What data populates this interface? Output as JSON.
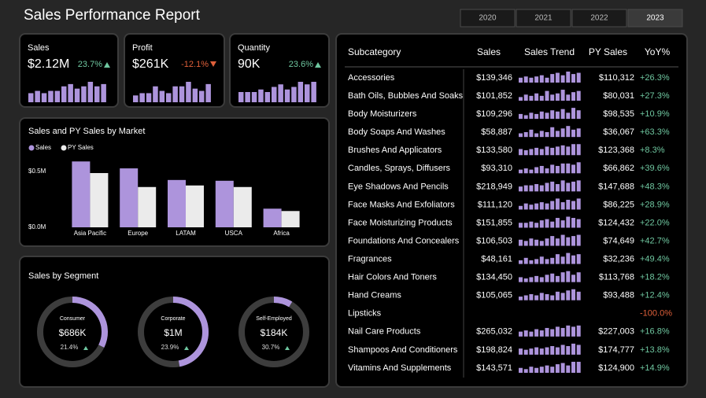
{
  "header": {
    "title": "Sales Performance Report",
    "years": [
      "2020",
      "2021",
      "2022",
      "2023"
    ],
    "selected_year": "2023"
  },
  "kpis": [
    {
      "label": "Sales",
      "value": "$2.12M",
      "change": "23.7%",
      "direction": "up",
      "trend": [
        4,
        5,
        4,
        5,
        5,
        7,
        8,
        6,
        7,
        9,
        7,
        8
      ]
    },
    {
      "label": "Profit",
      "value": "$261K",
      "change": "-12.1%",
      "direction": "down",
      "trend": [
        3,
        4,
        4,
        7,
        5,
        4,
        7,
        7,
        9,
        6,
        5,
        8
      ]
    },
    {
      "label": "Quantity",
      "value": "90K",
      "change": "23.6%",
      "direction": "up",
      "trend": [
        4,
        4,
        4,
        5,
        4,
        6,
        7,
        5,
        6,
        8,
        7,
        8
      ]
    }
  ],
  "chart_data": [
    {
      "type": "bar",
      "title": "Sales and PY Sales by Market",
      "categories": [
        "Asia Pacific",
        "Europe",
        "LATAM",
        "USCA",
        "Africa"
      ],
      "series": [
        {
          "name": "Sales",
          "color": "#ad94dc",
          "values": [
            590000,
            528000,
            424000,
            417000,
            167000
          ]
        },
        {
          "name": "PY Sales",
          "color": "#ebebeb",
          "values": [
            486000,
            361000,
            375000,
            361000,
            146000
          ]
        }
      ],
      "ylim": [
        0,
        620000
      ],
      "yticks": [
        {
          "value": 0,
          "label": "$0.0M"
        },
        {
          "value": 500000,
          "label": "$0.5M"
        }
      ]
    },
    {
      "type": "donut",
      "title": "Sales by Segment",
      "categories": [
        "Consumer",
        "Corporate",
        "Self-Employed"
      ],
      "values": [
        686000,
        1000000,
        184000
      ],
      "value_labels": [
        "$686K",
        "$1M",
        "$184K"
      ],
      "changes": [
        "21.4%",
        "23.9%",
        "30.7%"
      ],
      "color": "#ad94dc"
    }
  ],
  "table": {
    "columns": [
      "Subcategory",
      "Sales",
      "Sales Trend",
      "PY Sales",
      "YoY%"
    ],
    "rows": [
      {
        "name": "Accessories",
        "sales": "$139,346",
        "py_sales": "$110,312",
        "yoy": "+26.3%",
        "trend": [
          4,
          5,
          4,
          5,
          6,
          4,
          7,
          8,
          6,
          9,
          7,
          8
        ]
      },
      {
        "name": "Bath Oils, Bubbles And Soaks",
        "sales": "$101,852",
        "py_sales": "$80,031",
        "yoy": "+27.3%",
        "trend": [
          3,
          5,
          4,
          6,
          4,
          8,
          5,
          6,
          9,
          5,
          7,
          8
        ]
      },
      {
        "name": "Body Moisturizers",
        "sales": "$109,296",
        "py_sales": "$98,535",
        "yoy": "+10.9%",
        "trend": [
          4,
          3,
          5,
          4,
          6,
          5,
          7,
          6,
          8,
          5,
          9,
          7
        ]
      },
      {
        "name": "Body Soaps And Washes",
        "sales": "$58,887",
        "py_sales": "$36,067",
        "yoy": "+63.3%",
        "trend": [
          3,
          4,
          6,
          3,
          5,
          4,
          8,
          5,
          7,
          9,
          6,
          7
        ]
      },
      {
        "name": "Brushes And Applicators",
        "sales": "$133,580",
        "py_sales": "$123,368",
        "yoy": "+8.3%",
        "trend": [
          5,
          4,
          5,
          6,
          5,
          7,
          6,
          7,
          8,
          7,
          9,
          9
        ]
      },
      {
        "name": "Candles, Sprays, Diffusers",
        "sales": "$93,310",
        "py_sales": "$66,862",
        "yoy": "+39.6%",
        "trend": [
          3,
          4,
          3,
          5,
          6,
          4,
          7,
          6,
          8,
          8,
          7,
          9
        ]
      },
      {
        "name": "Eye Shadows And Pencils",
        "sales": "$218,949",
        "py_sales": "$147,688",
        "yoy": "+48.3%",
        "trend": [
          4,
          5,
          5,
          6,
          5,
          7,
          8,
          6,
          9,
          7,
          8,
          9
        ]
      },
      {
        "name": "Face Masks And Exfoliators",
        "sales": "$111,120",
        "py_sales": "$86,225",
        "yoy": "+28.9%",
        "trend": [
          3,
          5,
          4,
          5,
          6,
          5,
          7,
          9,
          6,
          8,
          7,
          9
        ]
      },
      {
        "name": "Face Moisturizing Products",
        "sales": "$151,855",
        "py_sales": "$124,432",
        "yoy": "+22.0%",
        "trend": [
          4,
          4,
          5,
          4,
          6,
          7,
          5,
          8,
          6,
          9,
          8,
          7
        ]
      },
      {
        "name": "Foundations And Concealers",
        "sales": "$106,503",
        "py_sales": "$74,649",
        "yoy": "+42.7%",
        "trend": [
          5,
          4,
          6,
          5,
          4,
          6,
          8,
          6,
          9,
          7,
          8,
          9
        ]
      },
      {
        "name": "Fragrances",
        "sales": "$48,161",
        "py_sales": "$32,236",
        "yoy": "+49.4%",
        "trend": [
          3,
          5,
          3,
          4,
          6,
          4,
          5,
          8,
          6,
          9,
          7,
          8
        ]
      },
      {
        "name": "Hair Colors And Toners",
        "sales": "$134,450",
        "py_sales": "$113,768",
        "yoy": "+18.2%",
        "trend": [
          4,
          3,
          4,
          5,
          4,
          6,
          7,
          5,
          8,
          9,
          6,
          8
        ]
      },
      {
        "name": "Hand Creams",
        "sales": "$105,065",
        "py_sales": "$93,488",
        "yoy": "+12.4%",
        "trend": [
          3,
          4,
          5,
          4,
          6,
          5,
          4,
          7,
          6,
          8,
          9,
          7
        ]
      },
      {
        "name": "Lipsticks",
        "yoy": "-100.0%",
        "trend": []
      },
      {
        "name": "Nail Care Products",
        "sales": "$265,032",
        "py_sales": "$227,003",
        "yoy": "+16.8%",
        "trend": [
          4,
          5,
          4,
          6,
          5,
          7,
          6,
          8,
          7,
          9,
          8,
          9
        ]
      },
      {
        "name": "Shampoos And Conditioners",
        "sales": "$198,824",
        "py_sales": "$174,777",
        "yoy": "+13.8%",
        "trend": [
          5,
          4,
          5,
          6,
          5,
          6,
          7,
          6,
          8,
          7,
          9,
          8
        ]
      },
      {
        "name": "Vitamins And Supplements",
        "sales": "$143,571",
        "py_sales": "$124,900",
        "yoy": "+14.9%",
        "trend": [
          4,
          3,
          5,
          4,
          5,
          6,
          5,
          7,
          8,
          6,
          9,
          9
        ]
      }
    ]
  }
}
